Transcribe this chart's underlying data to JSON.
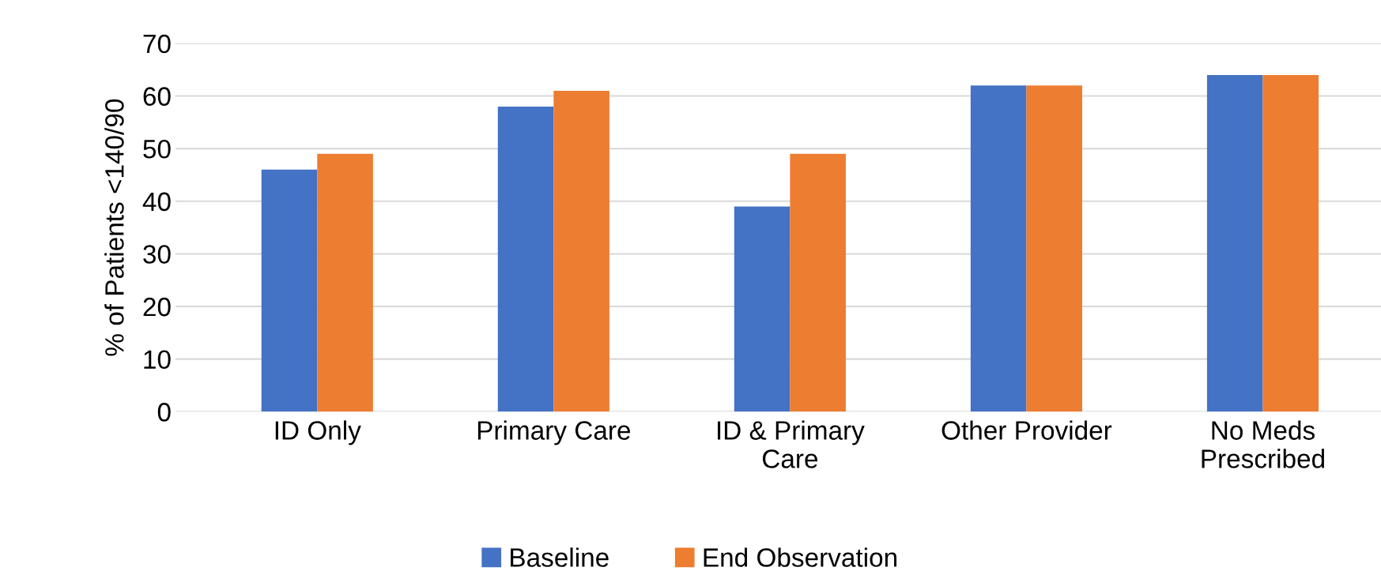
{
  "chart_data": {
    "type": "bar",
    "ylabel": "% of Patients <140/90",
    "categories": [
      "ID Only",
      "Primary Care",
      "ID & Primary\nCare",
      "Other Provider",
      "No Meds\nPrescribed"
    ],
    "series": [
      {
        "name": "Baseline",
        "color": "#4472c4",
        "values": [
          46,
          58,
          39,
          62,
          64
        ]
      },
      {
        "name": "End Observation",
        "color": "#ed7d31",
        "values": [
          49,
          61,
          49,
          62,
          64
        ]
      }
    ],
    "ylim": [
      0,
      70
    ],
    "yticks": [
      0,
      10,
      20,
      30,
      40,
      50,
      60,
      70
    ],
    "grid": "y",
    "legend": "bottom"
  }
}
